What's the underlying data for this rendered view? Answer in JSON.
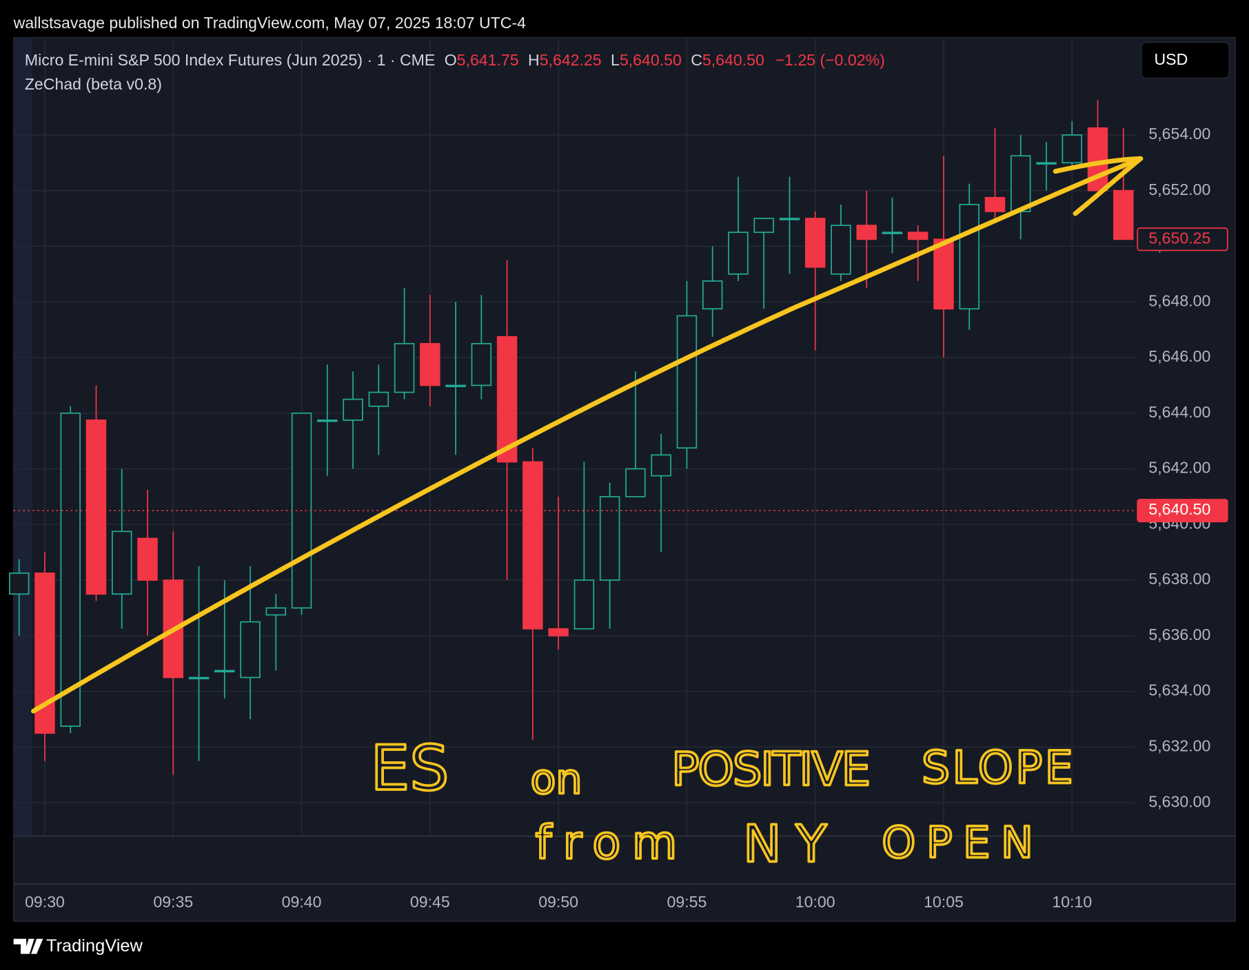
{
  "header": "wallstsavage published on TradingView.com, May 07, 2025 18:07 UTC-4",
  "footer": "TradingView",
  "chart_data": {
    "type": "candlestick",
    "title": "Micro E-mini S&P 500 Index Futures (Jun 2025) · 1 · CME",
    "legend_items": [
      {
        "label": "O",
        "value": "5,641.75"
      },
      {
        "label": "H",
        "value": "5,642.25"
      },
      {
        "label": "L",
        "value": "5,640.50"
      },
      {
        "label": "C",
        "value": "5,640.50"
      }
    ],
    "change": "−1.25 (−0.02%)",
    "indicator": "ZeChad (beta v0.8)",
    "currency": "USD",
    "categories": [
      null,
      "09:30",
      null,
      null,
      null,
      null,
      "09:35",
      null,
      null,
      null,
      null,
      "09:40",
      null,
      null,
      null,
      null,
      "09:45",
      null,
      null,
      null,
      null,
      "09:50",
      null,
      null,
      null,
      null,
      "09:55",
      null,
      null,
      null,
      null,
      "10:00",
      null,
      null,
      null,
      null,
      "10:05",
      null,
      null,
      null,
      null,
      "10:10",
      null,
      null
    ],
    "open": [
      5637.5,
      5638.25,
      5632.75,
      5643.75,
      5637.5,
      5639.5,
      5638.0,
      5634.5,
      5634.75,
      5634.5,
      5636.75,
      5637.0,
      5643.75,
      5643.75,
      5644.25,
      5644.75,
      5646.5,
      5645.0,
      5645.0,
      5646.75,
      5642.25,
      5636.25,
      5636.25,
      5638.0,
      5641.0,
      5641.75,
      5642.75,
      5647.75,
      5649.0,
      5650.5,
      5651.0,
      5651.0,
      5649.0,
      5650.75,
      5650.5,
      5650.5,
      5650.25,
      5647.75,
      5651.75,
      5651.25,
      5653.0,
      5653.0,
      5654.25,
      5652.0
    ],
    "high": [
      5638.75,
      5639.0,
      5644.25,
      5645.0,
      5642.0,
      5641.25,
      5639.75,
      5638.5,
      5638.0,
      5638.5,
      5637.5,
      5644.0,
      5645.75,
      5645.5,
      5645.75,
      5648.5,
      5648.25,
      5648.0,
      5648.25,
      5649.5,
      5642.75,
      5641.0,
      5642.25,
      5641.5,
      5645.5,
      5643.25,
      5648.75,
      5650.0,
      5652.5,
      5651.0,
      5652.5,
      5651.25,
      5651.5,
      5652.0,
      5651.75,
      5650.75,
      5653.25,
      5652.25,
      5654.25,
      5654.0,
      5653.75,
      5654.5,
      5655.25,
      5654.25
    ],
    "low": [
      5636.0,
      5631.5,
      5632.5,
      5637.25,
      5636.25,
      5636.0,
      5631.0,
      5631.5,
      5633.75,
      5633.0,
      5634.75,
      5636.75,
      5641.75,
      5642.0,
      5642.5,
      5644.5,
      5644.25,
      5642.5,
      5644.5,
      5638.0,
      5632.25,
      5635.5,
      5636.25,
      5636.25,
      5641.0,
      5639.0,
      5642.0,
      5646.75,
      5648.75,
      5647.75,
      5649.0,
      5646.25,
      5648.75,
      5648.5,
      5649.75,
      5648.75,
      5646.0,
      5647.0,
      5651.0,
      5650.25,
      5652.0,
      5652.75,
      5652.0,
      5650.25
    ],
    "close": [
      5638.25,
      5632.5,
      5644.0,
      5637.5,
      5639.75,
      5638.0,
      5634.5,
      5634.5,
      5634.75,
      5636.5,
      5637.0,
      5644.0,
      5643.75,
      5644.5,
      5644.75,
      5646.5,
      5645.0,
      5645.0,
      5646.5,
      5642.25,
      5636.25,
      5636.0,
      5638.0,
      5641.0,
      5642.0,
      5642.5,
      5647.5,
      5648.75,
      5650.5,
      5651.0,
      5651.0,
      5649.25,
      5650.75,
      5650.25,
      5650.5,
      5650.25,
      5647.75,
      5651.5,
      5651.25,
      5653.25,
      5653.0,
      5654.0,
      5652.0,
      5650.25
    ],
    "up_color": "#22ab94",
    "down_color": "#f23645",
    "ylim": [
      5628.8,
      5657.5
    ],
    "yticks": [
      {
        "value": 5630,
        "label": "5,630.00"
      },
      {
        "value": 5632,
        "label": "5,632.00"
      },
      {
        "value": 5634,
        "label": "5,634.00"
      },
      {
        "value": 5636,
        "label": "5,636.00"
      },
      {
        "value": 5638,
        "label": "5,638.00"
      },
      {
        "value": 5640,
        "label": "5,640.00"
      },
      {
        "value": 5642,
        "label": "5,642.00"
      },
      {
        "value": 5644,
        "label": "5,644.00"
      },
      {
        "value": 5646,
        "label": "5,646.00"
      },
      {
        "value": 5648,
        "label": "5,648.00"
      },
      {
        "value": 5650,
        "label": "5,650.00"
      },
      {
        "value": 5652,
        "label": "5,652.00"
      },
      {
        "value": 5654,
        "label": "5,654.00"
      }
    ],
    "price_lines": [
      {
        "value": 5640.5,
        "label": "5,640.50",
        "style": "filled"
      },
      {
        "value": 5650.25,
        "label": "5,650.25",
        "style": "outline"
      }
    ],
    "grid": true,
    "annotation": [
      "ES",
      "on",
      "POSITIVE",
      "SLOPE",
      "from",
      "NY",
      "OPEN"
    ]
  }
}
